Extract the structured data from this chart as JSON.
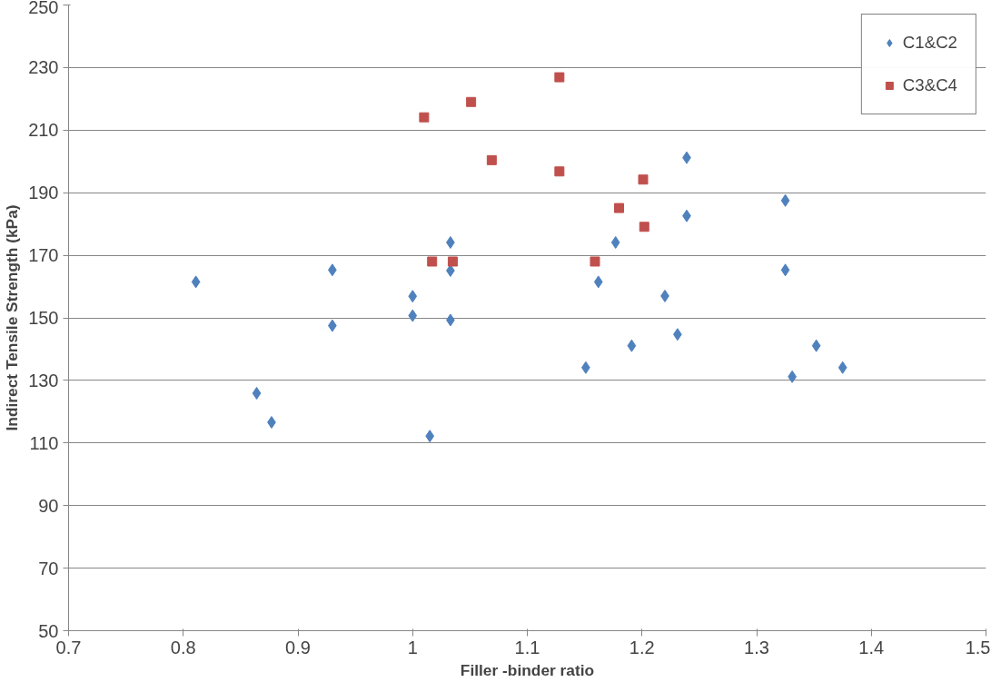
{
  "chart_data": {
    "type": "scatter",
    "xlabel": "Filler -binder ratio",
    "ylabel": "Indirect Tensile Strength (kPa)",
    "xlim": [
      0.7,
      1.5
    ],
    "xticks": [
      0.7,
      0.8,
      0.9,
      1,
      1.1,
      1.2,
      1.3,
      1.4,
      1.5
    ],
    "ylim": [
      50,
      250
    ],
    "yticks": [
      50,
      70,
      90,
      110,
      130,
      150,
      170,
      190,
      210,
      230,
      250
    ],
    "grid": "y",
    "legend": "top right",
    "series": [
      {
        "name": "C1&C2",
        "color": "#4f81bd",
        "marker": "diamond",
        "x": [
          0.811,
          0.93,
          0.93,
          0.864,
          0.877,
          1.0,
          1.0,
          1.015,
          1.033,
          1.033,
          1.033,
          1.151,
          1.162,
          1.177,
          1.191,
          1.22,
          1.231,
          1.239,
          1.239,
          1.325,
          1.325,
          1.331,
          1.352,
          1.375
        ],
        "values": [
          161.5,
          165.3,
          147.5,
          125.9,
          116.6,
          156.9,
          150.7,
          112.2,
          174.1,
          165.1,
          149.3,
          134.1,
          161.5,
          174.1,
          141.1,
          157.0,
          144.7,
          201.2,
          182.6,
          187.5,
          165.3,
          131.2,
          141.1,
          134.1
        ]
      },
      {
        "name": "C3&C4",
        "color": "#c0504d",
        "marker": "square",
        "x": [
          1.01,
          1.017,
          1.035,
          1.051,
          1.069,
          1.128,
          1.128,
          1.159,
          1.18,
          1.201,
          1.202
        ],
        "values": [
          214.1,
          168.0,
          168.0,
          219.0,
          200.4,
          226.9,
          196.8,
          168.0,
          185.1,
          194.2,
          179.1
        ]
      }
    ]
  }
}
